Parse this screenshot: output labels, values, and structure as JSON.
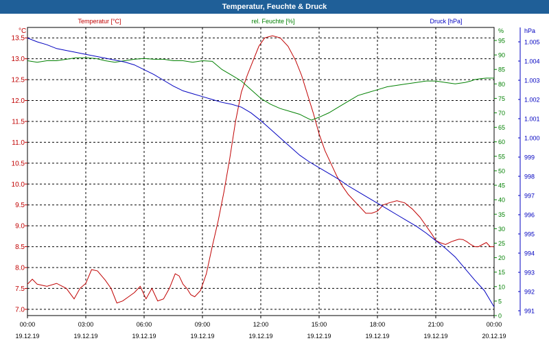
{
  "window": {
    "title": "Temperatur, Feuchte & Druck"
  },
  "chart_data": {
    "type": "line",
    "title": "Temperatur, Feuchte & Druck",
    "grid": true,
    "x": {
      "range": [
        "19.12.19 00:00",
        "20.12.19 00:00"
      ],
      "tick_times": [
        "00:00",
        "03:00",
        "06:00",
        "09:00",
        "12:00",
        "15:00",
        "18:00",
        "21:00",
        "00:00"
      ],
      "tick_dates": [
        "19.12.19",
        "19.12.19",
        "19.12.19",
        "19.12.19",
        "19.12.19",
        "19.12.19",
        "19.12.19",
        "19.12.19",
        "20.12.19"
      ]
    },
    "axes": {
      "temperature": {
        "side": "left",
        "unit": "°C",
        "range": [
          6.85,
          13.75
        ],
        "ticks": [
          "7.0",
          "7.5",
          "8.0",
          "8.5",
          "9.0",
          "9.5",
          "10.0",
          "10.5",
          "11.0",
          "11.5",
          "12.0",
          "12.5",
          "13.0",
          "13.5"
        ]
      },
      "humidity": {
        "side": "right",
        "unit": "%",
        "range": [
          0,
          99.5
        ],
        "ticks": [
          "0",
          "5",
          "10",
          "15",
          "20",
          "25",
          "30",
          "35",
          "40",
          "45",
          "50",
          "55",
          "60",
          "65",
          "70",
          "75",
          "80",
          "85",
          "90",
          "95"
        ]
      },
      "pressure": {
        "side": "right",
        "unit": "hPa",
        "range": [
          990.75,
          1005.75
        ],
        "ticks": [
          "991",
          "992",
          "993",
          "994",
          "995",
          "996",
          "997",
          "998",
          "999",
          "1.000",
          "1.001",
          "1.002",
          "1.003",
          "1.004",
          "1.005"
        ]
      }
    },
    "series": [
      {
        "name": "Temperatur [°C]",
        "axis": "temperature",
        "color": "#c00000",
        "x_hours": [
          0,
          0.25,
          0.5,
          1,
          1.5,
          2,
          2.4,
          2.7,
          3,
          3.3,
          3.6,
          4,
          4.3,
          4.6,
          4.9,
          5.2,
          5.5,
          5.8,
          6.1,
          6.4,
          6.7,
          7,
          7.3,
          7.6,
          7.8,
          8,
          8.2,
          8.4,
          8.6,
          8.9,
          9.2,
          9.5,
          9.8,
          10.1,
          10.4,
          10.7,
          11,
          11.3,
          11.6,
          11.9,
          12.2,
          12.6,
          13,
          13.4,
          13.8,
          14.1,
          14.4,
          14.7,
          15,
          15.3,
          15.6,
          15.9,
          16.2,
          16.5,
          16.8,
          17.1,
          17.4,
          17.7,
          18,
          18.3,
          18.6,
          19,
          19.4,
          19.8,
          20.2,
          20.5,
          20.8,
          21,
          21.2,
          21.5,
          21.8,
          22,
          22.2,
          22.4,
          22.6,
          22.8,
          23,
          23.2,
          23.4,
          23.6,
          23.8,
          24
        ],
        "y": [
          7.6,
          7.72,
          7.6,
          7.55,
          7.62,
          7.5,
          7.25,
          7.5,
          7.62,
          7.95,
          7.92,
          7.7,
          7.5,
          7.15,
          7.2,
          7.3,
          7.4,
          7.55,
          7.25,
          7.5,
          7.2,
          7.25,
          7.5,
          7.85,
          7.8,
          7.6,
          7.5,
          7.35,
          7.3,
          7.45,
          7.85,
          8.5,
          9.1,
          9.8,
          10.6,
          11.5,
          12.2,
          12.6,
          12.95,
          13.3,
          13.5,
          13.55,
          13.5,
          13.3,
          12.95,
          12.6,
          12.15,
          11.7,
          11.2,
          10.8,
          10.5,
          10.2,
          9.95,
          9.75,
          9.6,
          9.45,
          9.3,
          9.3,
          9.35,
          9.5,
          9.55,
          9.6,
          9.55,
          9.4,
          9.2,
          9.0,
          8.8,
          8.65,
          8.6,
          8.55,
          8.62,
          8.65,
          8.68,
          8.67,
          8.62,
          8.55,
          8.5,
          8.5,
          8.55,
          8.6,
          8.5,
          8.5
        ]
      },
      {
        "name": "rel. Feuchte [%]",
        "axis": "humidity",
        "color": "#008000",
        "x_hours": [
          0,
          0.5,
          1,
          1.5,
          2,
          2.5,
          3,
          3.5,
          4,
          4.5,
          5,
          5.5,
          6,
          6.5,
          7,
          7.5,
          8,
          8.5,
          9,
          9.5,
          10,
          10.5,
          11,
          11.5,
          12,
          12.5,
          13,
          13.5,
          14,
          14.3,
          14.6,
          15,
          15.5,
          16,
          16.5,
          17,
          17.5,
          18,
          18.5,
          19,
          19.5,
          20,
          20.5,
          21,
          21.5,
          22,
          22.5,
          22.8,
          23,
          23.3,
          23.6,
          24
        ],
        "y": [
          88,
          87.5,
          88,
          88,
          88.5,
          89,
          89,
          88.8,
          88,
          87.5,
          88,
          88.5,
          88.8,
          88.5,
          88.5,
          88,
          88,
          87.5,
          88,
          87.8,
          85,
          83,
          81,
          78,
          75,
          73,
          71.5,
          70.5,
          69.5,
          68.5,
          67.5,
          68.5,
          70,
          72,
          74,
          76,
          77,
          78,
          79,
          79.5,
          80,
          80.5,
          81,
          81,
          80.5,
          80,
          80.5,
          81,
          81.5,
          81.8,
          82,
          82
        ]
      },
      {
        "name": "Druck [hPa]",
        "axis": "pressure",
        "color": "#0000c0",
        "x_hours": [
          0,
          0.5,
          1,
          1.5,
          2,
          2.5,
          3,
          3.5,
          4,
          4.5,
          5,
          5.5,
          6,
          6.5,
          7,
          7.5,
          8,
          8.5,
          9,
          9.5,
          10,
          10.5,
          11,
          11.5,
          12,
          12.5,
          13,
          13.5,
          14,
          14.5,
          15,
          15.5,
          16,
          16.5,
          17,
          17.5,
          18,
          18.5,
          19,
          19.5,
          20,
          20.5,
          21,
          21.5,
          22,
          22.5,
          23,
          23.5,
          24
        ],
        "y": [
          1005.2,
          1005.0,
          1004.85,
          1004.65,
          1004.55,
          1004.45,
          1004.35,
          1004.25,
          1004.15,
          1004.05,
          1003.95,
          1003.8,
          1003.55,
          1003.3,
          1003.0,
          1002.7,
          1002.45,
          1002.3,
          1002.15,
          1002.0,
          1001.85,
          1001.75,
          1001.6,
          1001.3,
          1000.9,
          1000.45,
          1000.0,
          999.55,
          999.1,
          998.75,
          998.45,
          998.15,
          997.85,
          997.5,
          997.2,
          996.9,
          996.6,
          996.3,
          996.0,
          995.7,
          995.4,
          995.05,
          994.65,
          994.25,
          993.8,
          993.2,
          992.6,
          992.05,
          991.2
        ]
      }
    ]
  }
}
